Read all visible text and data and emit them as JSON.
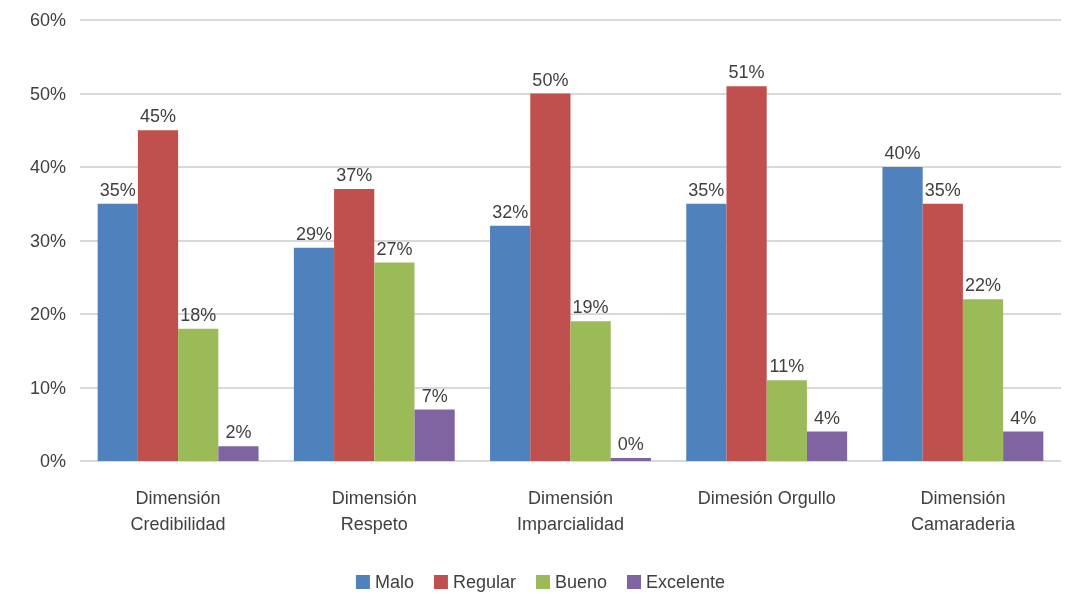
{
  "chart_data": {
    "type": "bar",
    "categories": [
      "Dimensión\nCredibilidad",
      "Dimensión\nRespeto",
      "Dimensión\nImparcialidad",
      "Dimesión Orgullo",
      "Dimensión\nCamaraderia"
    ],
    "series": [
      {
        "name": "Malo",
        "color": "#4f81bd",
        "values": [
          35,
          29,
          32,
          35,
          40
        ],
        "value_labels": [
          "35%",
          "29%",
          "32%",
          "35%",
          "40%"
        ]
      },
      {
        "name": "Regular",
        "color": "#c0504d",
        "values": [
          45,
          37,
          50,
          51,
          35
        ],
        "value_labels": [
          "45%",
          "37%",
          "50%",
          "51%",
          "35%"
        ]
      },
      {
        "name": "Bueno",
        "color": "#9bbb59",
        "values": [
          18,
          27,
          19,
          11,
          22
        ],
        "value_labels": [
          "18%",
          "27%",
          "19%",
          "11%",
          "22%"
        ]
      },
      {
        "name": "Excelente",
        "color": "#8064a2",
        "values": [
          2,
          7,
          0,
          4,
          4
        ],
        "value_labels": [
          "2%",
          "7%",
          "0%",
          "4%",
          "4%"
        ]
      }
    ],
    "ylim": [
      0,
      60
    ],
    "yticks": [
      {
        "value": 0,
        "label": "0%"
      },
      {
        "value": 10,
        "label": "10%"
      },
      {
        "value": 20,
        "label": "20%"
      },
      {
        "value": 30,
        "label": "30%"
      },
      {
        "value": 40,
        "label": "40%"
      },
      {
        "value": 50,
        "label": "50%"
      },
      {
        "value": 60,
        "label": "60%"
      }
    ],
    "grid": "y",
    "legend": "bottom"
  }
}
